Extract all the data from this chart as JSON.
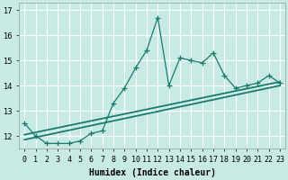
{
  "xlabel": "Humidex (Indice chaleur)",
  "background_color": "#c8eae5",
  "line_color": "#1a7a6e",
  "grid_color": "#ffffff",
  "x_values": [
    0,
    1,
    2,
    3,
    4,
    5,
    6,
    7,
    8,
    9,
    10,
    11,
    12,
    13,
    14,
    15,
    16,
    17,
    18,
    19,
    20,
    21,
    22,
    23
  ],
  "y_values": [
    12.5,
    12.0,
    11.7,
    11.7,
    11.7,
    11.8,
    12.1,
    12.2,
    13.3,
    13.9,
    14.7,
    15.4,
    16.7,
    14.0,
    15.1,
    15.0,
    14.9,
    15.3,
    14.4,
    13.9,
    14.0,
    14.1,
    14.4,
    14.1
  ],
  "trend1_x": [
    0,
    23
  ],
  "trend1_y": [
    11.85,
    14.0
  ],
  "trend2_x": [
    0,
    23
  ],
  "trend2_y": [
    12.05,
    14.15
  ],
  "ylim": [
    11.5,
    17.3
  ],
  "xlim": [
    -0.5,
    23.5
  ],
  "yticks": [
    12,
    13,
    14,
    15,
    16,
    17
  ],
  "xtick_labels": [
    "0",
    "1",
    "2",
    "3",
    "4",
    "5",
    "6",
    "7",
    "8",
    "9",
    "10",
    "11",
    "12",
    "13",
    "14",
    "15",
    "16",
    "17",
    "18",
    "19",
    "20",
    "21",
    "22",
    "23"
  ],
  "label_fontsize": 7,
  "tick_fontsize": 6
}
